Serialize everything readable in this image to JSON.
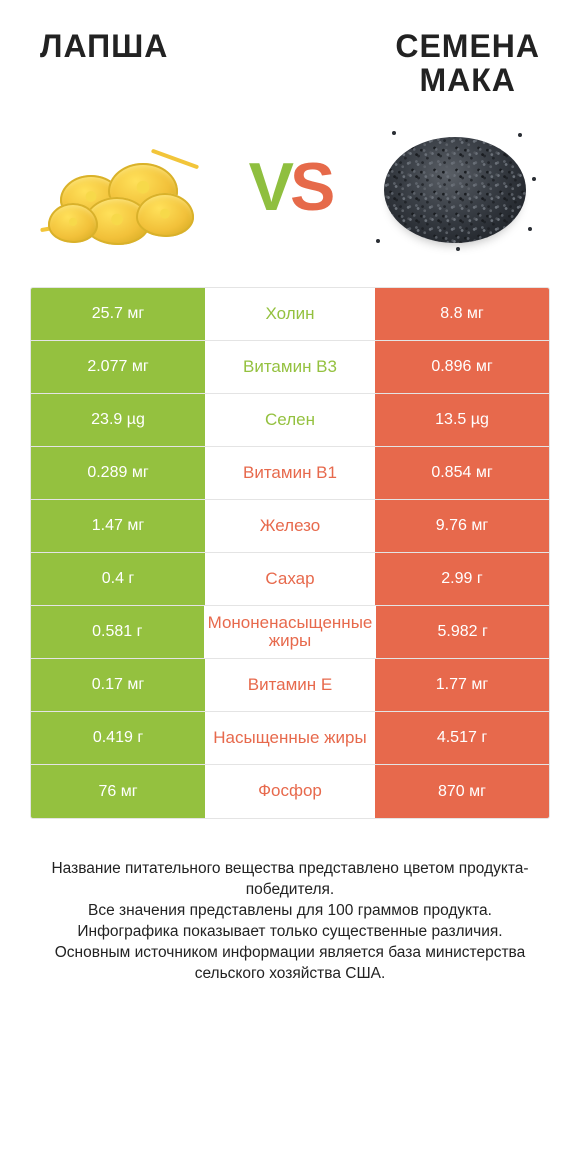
{
  "colors": {
    "left_color": "#94c13f",
    "right_color": "#e7694c",
    "neutral_color": "#ffffff",
    "border_color": "#e4e4e4",
    "text_dark": "#222222"
  },
  "header": {
    "left_title": "ЛАПША",
    "right_title": "СЕМЕНА МАКА",
    "vs_v": "V",
    "vs_s": "S"
  },
  "rows": [
    {
      "label": "Холин",
      "left": "25.7 мг",
      "right": "8.8 мг",
      "winner": "left"
    },
    {
      "label": "Витамин B3",
      "left": "2.077 мг",
      "right": "0.896 мг",
      "winner": "left"
    },
    {
      "label": "Селен",
      "left": "23.9 µg",
      "right": "13.5 µg",
      "winner": "left"
    },
    {
      "label": "Витамин B1",
      "left": "0.289 мг",
      "right": "0.854 мг",
      "winner": "right"
    },
    {
      "label": "Железо",
      "left": "1.47 мг",
      "right": "9.76 мг",
      "winner": "right"
    },
    {
      "label": "Сахар",
      "left": "0.4 г",
      "right": "2.99 г",
      "winner": "right"
    },
    {
      "label": "Мононенасыщенные жиры",
      "left": "0.581 г",
      "right": "5.982 г",
      "winner": "right"
    },
    {
      "label": "Витамин E",
      "left": "0.17 мг",
      "right": "1.77 мг",
      "winner": "right"
    },
    {
      "label": "Насыщенные жиры",
      "left": "0.419 г",
      "right": "4.517 г",
      "winner": "right"
    },
    {
      "label": "Фосфор",
      "left": "76 мг",
      "right": "870 мг",
      "winner": "right"
    }
  ],
  "footer": {
    "line1": "Название питательного вещества представлено цветом продукта-победителя.",
    "line2": "Все значения представлены для 100 граммов продукта.",
    "line3": "Инфографика показывает только существенные различия.",
    "line4": "Основным источником информации является база министерства сельского хозяйства США."
  }
}
